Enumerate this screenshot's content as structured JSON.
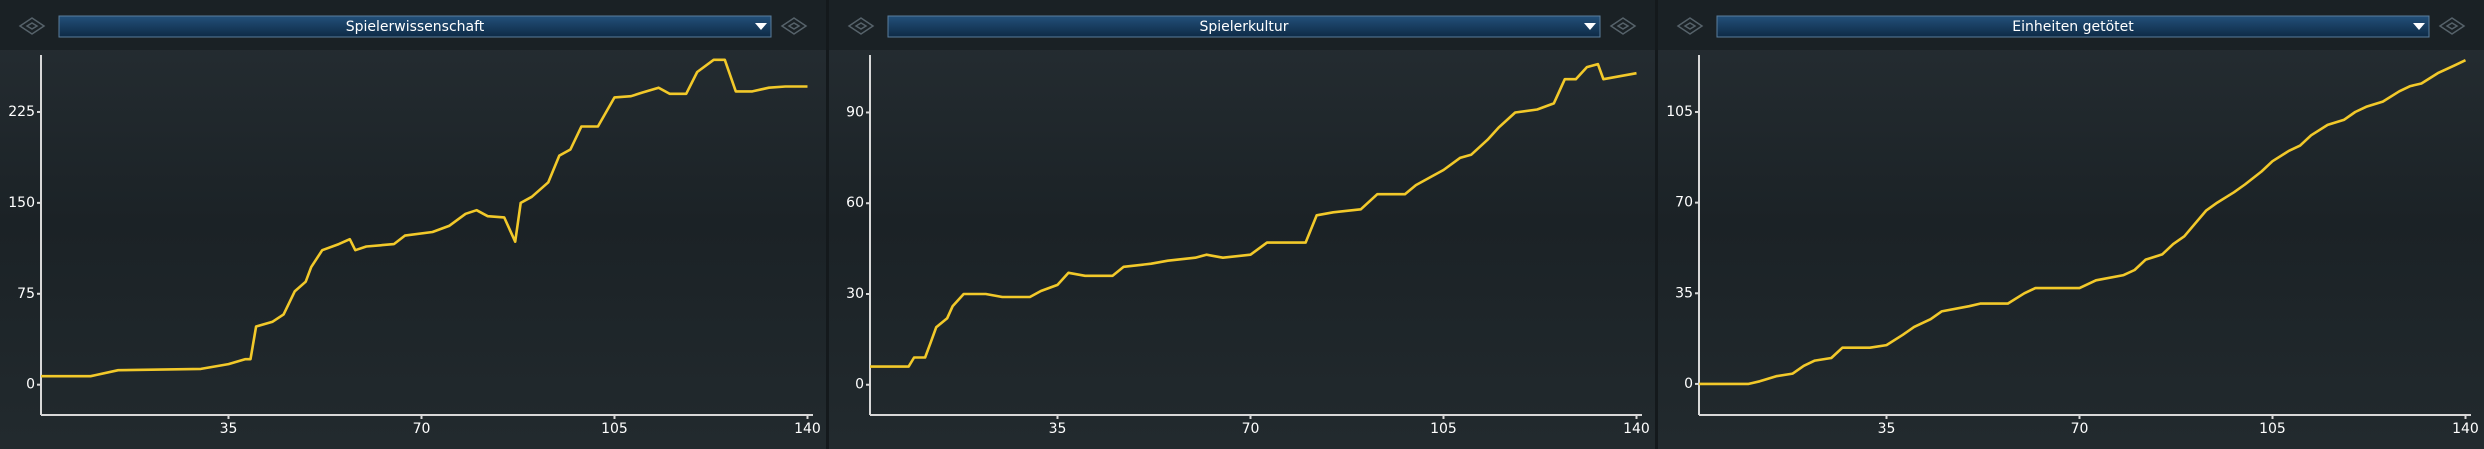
{
  "chart_data": [
    {
      "type": "line",
      "title": "Spielerwissenschaft",
      "color": "#f2c92a",
      "x": [
        1,
        10,
        11,
        15,
        30,
        35,
        38,
        39,
        40,
        43,
        45,
        47,
        49,
        50,
        52,
        55,
        57,
        58,
        60,
        65,
        67,
        72,
        75,
        78,
        80,
        82,
        85,
        87,
        88,
        90,
        93,
        95,
        97,
        99,
        102,
        105,
        108,
        110,
        113,
        115,
        118,
        120,
        123,
        125,
        127,
        130,
        133,
        136,
        140
      ],
      "values": [
        7,
        7,
        8,
        12,
        13,
        17,
        21,
        21,
        48,
        52,
        58,
        77,
        85,
        97,
        111,
        116,
        120,
        111,
        114,
        116,
        123,
        126,
        131,
        141,
        144,
        139,
        138,
        118,
        150,
        155,
        167,
        189,
        194,
        213,
        213,
        237,
        238,
        241,
        245,
        240,
        240,
        258,
        268,
        268,
        242,
        242,
        245,
        246,
        246
      ],
      "xlim": [
        1,
        141
      ],
      "xticks": [
        35,
        70,
        105,
        140
      ],
      "ylim": [
        -25,
        272
      ],
      "yticks": [
        0,
        75,
        150,
        225
      ]
    },
    {
      "type": "line",
      "title": "Spielerkultur",
      "color": "#f2c92a",
      "x": [
        1,
        8,
        9,
        11,
        12,
        13,
        15,
        16,
        18,
        22,
        25,
        30,
        32,
        35,
        37,
        40,
        45,
        47,
        52,
        55,
        60,
        62,
        65,
        70,
        73,
        80,
        82,
        85,
        90,
        93,
        98,
        100,
        103,
        105,
        108,
        110,
        113,
        115,
        118,
        122,
        125,
        127,
        129,
        131,
        133,
        134,
        137,
        140
      ],
      "values": [
        6,
        6,
        9,
        9,
        14,
        19,
        22,
        26,
        30,
        30,
        29,
        29,
        31,
        33,
        37,
        36,
        36,
        39,
        40,
        41,
        42,
        43,
        42,
        43,
        47,
        47,
        56,
        57,
        58,
        63,
        63,
        66,
        69,
        71,
        75,
        76,
        81,
        85,
        90,
        91,
        93,
        101,
        101,
        105,
        106,
        101,
        102,
        103
      ],
      "xlim": [
        1,
        141
      ],
      "xticks": [
        35,
        70,
        105,
        140
      ],
      "ylim": [
        -10,
        109
      ],
      "yticks": [
        0,
        30,
        60,
        90
      ]
    },
    {
      "type": "line",
      "title": "Einheiten getötet",
      "color": "#f2c92a",
      "x": [
        1,
        10,
        12,
        15,
        18,
        20,
        22,
        25,
        27,
        32,
        35,
        38,
        40,
        43,
        45,
        50,
        52,
        57,
        60,
        62,
        70,
        73,
        78,
        80,
        82,
        85,
        87,
        89,
        91,
        93,
        95,
        98,
        100,
        103,
        105,
        108,
        110,
        112,
        115,
        118,
        120,
        122,
        125,
        128,
        130,
        132,
        135,
        138,
        140
      ],
      "values": [
        0,
        0,
        1,
        3,
        4,
        7,
        9,
        10,
        14,
        14,
        15,
        19,
        22,
        25,
        28,
        30,
        31,
        31,
        35,
        37,
        37,
        40,
        42,
        44,
        48,
        50,
        54,
        57,
        62,
        67,
        70,
        74,
        77,
        82,
        86,
        90,
        92,
        96,
        100,
        102,
        105,
        107,
        109,
        113,
        115,
        116,
        120,
        123,
        125
      ],
      "xlim": [
        1,
        141
      ],
      "xticks": [
        35,
        70,
        105,
        140
      ],
      "ylim": [
        -12,
        127
      ],
      "yticks": [
        0,
        35,
        70,
        105
      ]
    }
  ]
}
